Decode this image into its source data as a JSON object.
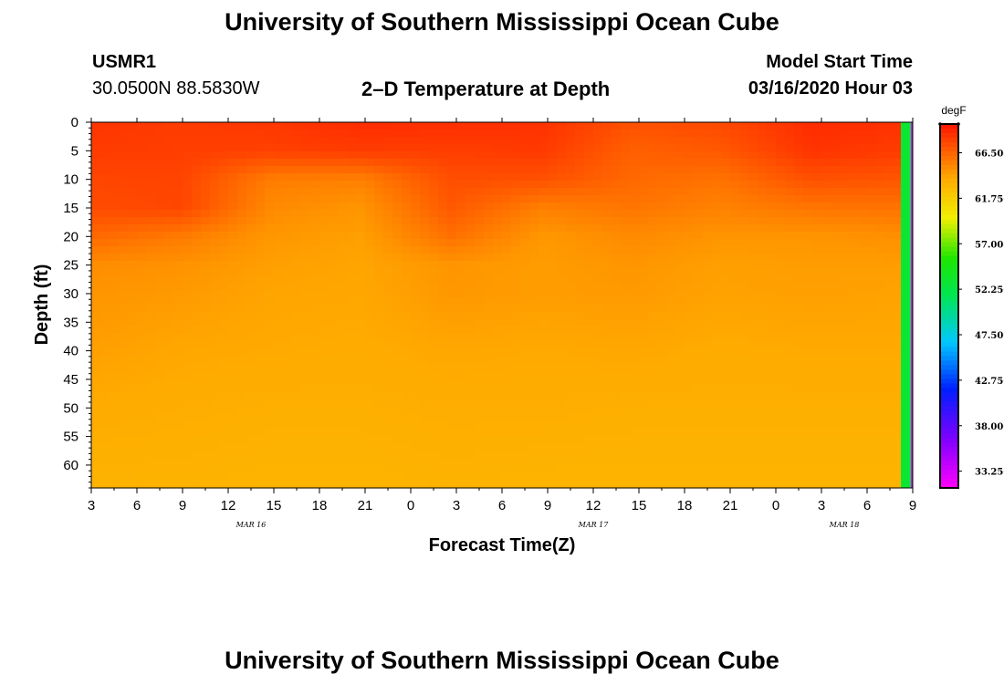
{
  "header": {
    "title": "University of Southern Mississippi Ocean Cube",
    "station_id": "USMR1",
    "coords": "30.0500N 88.5830W",
    "plot_title": "2–D Temperature at Depth",
    "model_label": "Model Start Time",
    "model_time": "03/16/2020 Hour 03"
  },
  "footer": {
    "title": "University of Southern Mississippi Ocean Cube"
  },
  "chart_data": {
    "type": "heatmap",
    "xlabel": "Forecast Time(Z)",
    "ylabel": "Depth (ft)",
    "x_ticks": [
      "3",
      "6",
      "9",
      "12",
      "15",
      "18",
      "21",
      "0",
      "3",
      "6",
      "9",
      "12",
      "15",
      "18",
      "21",
      "0",
      "3",
      "6",
      "9"
    ],
    "date_labels": [
      {
        "label": "MAR 16",
        "at_tick": 3.5
      },
      {
        "label": "MAR 17",
        "at_tick": 11
      },
      {
        "label": "MAR 18",
        "at_tick": 16.5
      }
    ],
    "y_ticks": [
      0,
      5,
      10,
      15,
      20,
      25,
      30,
      35,
      40,
      45,
      50,
      55,
      60
    ],
    "ylim": [
      0,
      64
    ],
    "colorbar": {
      "unit": "degF",
      "labels": [
        "66.500",
        "61.750",
        "57.000",
        "52.250",
        "47.500",
        "42.750",
        "38.000",
        "33.250"
      ],
      "range": [
        31.5,
        69.5
      ]
    },
    "temperature_degF": {
      "depths_ft": [
        0,
        5,
        10,
        15,
        20,
        25,
        30,
        40,
        50,
        64
      ],
      "times_h": [
        0,
        6,
        12,
        18,
        24,
        30,
        36,
        42,
        48,
        54
      ],
      "values": [
        [
          68.3,
          68.0,
          68.2,
          68.6,
          68.5,
          68.4,
          67.2,
          67.5,
          68.6,
          68.4
        ],
        [
          68.0,
          67.9,
          67.8,
          68.0,
          67.9,
          68.1,
          66.6,
          66.9,
          68.3,
          68.0
        ],
        [
          67.6,
          67.7,
          65.5,
          65.4,
          67.3,
          67.2,
          66.3,
          65.9,
          67.2,
          67.0
        ],
        [
          67.4,
          67.6,
          65.0,
          64.6,
          66.9,
          65.4,
          65.8,
          65.3,
          65.8,
          65.9
        ],
        [
          66.3,
          65.6,
          64.5,
          64.2,
          66.0,
          64.5,
          65.0,
          64.6,
          64.6,
          64.8
        ],
        [
          64.9,
          64.7,
          64.2,
          64.0,
          64.6,
          64.3,
          64.6,
          64.2,
          64.3,
          64.3
        ],
        [
          64.6,
          64.4,
          64.0,
          63.9,
          64.5,
          64.3,
          64.4,
          64.1,
          64.2,
          64.1
        ],
        [
          64.2,
          63.9,
          63.8,
          63.7,
          63.9,
          63.8,
          63.9,
          63.7,
          63.8,
          63.8
        ],
        [
          63.7,
          63.6,
          63.5,
          63.5,
          63.6,
          63.6,
          63.5,
          63.5,
          63.5,
          63.5
        ],
        [
          63.3,
          63.3,
          63.2,
          63.2,
          63.3,
          63.2,
          63.2,
          63.2,
          63.2,
          63.2
        ]
      ],
      "final_step_value": 53.0,
      "final_edge_value": 33.0
    }
  }
}
